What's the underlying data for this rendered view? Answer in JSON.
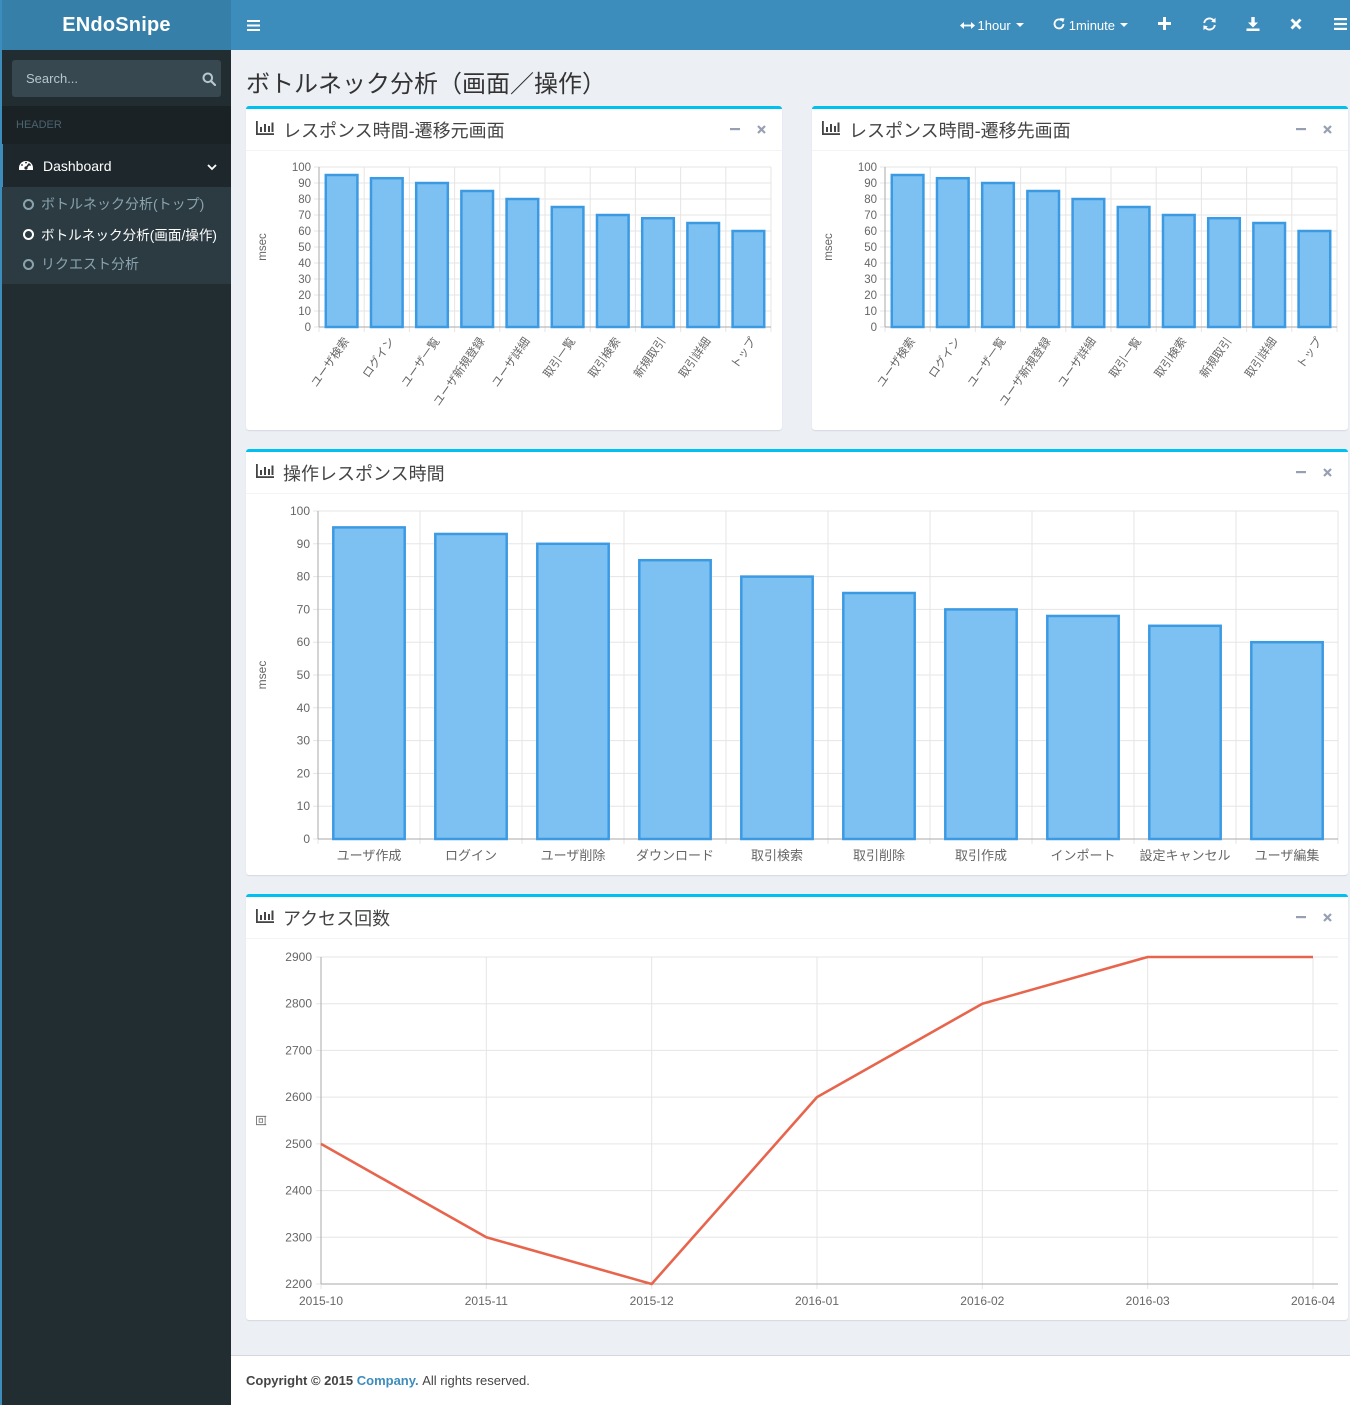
{
  "app": {
    "logo": "ENdoSnipe"
  },
  "sidebar": {
    "search_placeholder": "Search...",
    "header": "HEADER",
    "dashboard_label": "Dashboard",
    "items": [
      {
        "label": "ボトルネック分析(トップ)",
        "active": false
      },
      {
        "label": "ボトルネック分析(画面/操作)",
        "active": true
      },
      {
        "label": "リクエスト分析",
        "active": false
      }
    ]
  },
  "topbar": {
    "range_label": "1hour",
    "refresh_label": "1minute"
  },
  "page": {
    "title": "ボトルネック分析（画面／操作）"
  },
  "footer": {
    "prefix": "Copyright © 2015",
    "company": "Company.",
    "suffix": "All rights reserved."
  },
  "colors": {
    "bar_fill": "#7cc1f2",
    "bar_stroke": "#3c9ae3",
    "line": "#e8654d",
    "accent": "#00c0ef"
  },
  "chart_data": [
    {
      "id": "chart1",
      "type": "bar",
      "title": "レスポンス時間-遷移元画面",
      "ylabel": "msec",
      "ylim": [
        0,
        100
      ],
      "yticks": [
        0,
        10,
        20,
        30,
        40,
        50,
        60,
        70,
        80,
        90,
        100
      ],
      "categories": [
        "ユーザ検索",
        "ログイン",
        "ユーザ一覧",
        "ユーザ新規登録",
        "ユーザ詳細",
        "取引一覧",
        "取引検索",
        "新規取引",
        "取引詳細",
        "トップ"
      ],
      "values": [
        95,
        93,
        90,
        85,
        80,
        75,
        70,
        68,
        65,
        60
      ]
    },
    {
      "id": "chart2",
      "type": "bar",
      "title": "レスポンス時間-遷移先画面",
      "ylabel": "msec",
      "ylim": [
        0,
        100
      ],
      "yticks": [
        0,
        10,
        20,
        30,
        40,
        50,
        60,
        70,
        80,
        90,
        100
      ],
      "categories": [
        "ユーザ検索",
        "ログイン",
        "ユーザ一覧",
        "ユーザ新規登録",
        "ユーザ詳細",
        "取引一覧",
        "取引検索",
        "新規取引",
        "取引詳細",
        "トップ"
      ],
      "values": [
        95,
        93,
        90,
        85,
        80,
        75,
        70,
        68,
        65,
        60
      ]
    },
    {
      "id": "chart3",
      "type": "bar",
      "title": "操作レスポンス時間",
      "ylabel": "msec",
      "ylim": [
        0,
        100
      ],
      "yticks": [
        0,
        10,
        20,
        30,
        40,
        50,
        60,
        70,
        80,
        90,
        100
      ],
      "categories": [
        "ユーザ作成",
        "ログイン",
        "ユーザ削除",
        "ダウンロード",
        "取引検索",
        "取引削除",
        "取引作成",
        "インポート",
        "設定キャンセル",
        "ユーザ編集"
      ],
      "values": [
        95,
        93,
        90,
        85,
        80,
        75,
        70,
        68,
        65,
        60
      ]
    },
    {
      "id": "chart4",
      "type": "line",
      "title": "アクセス回数",
      "ylabel": "回",
      "ylim": [
        2200,
        2900
      ],
      "yticks": [
        2200,
        2300,
        2400,
        2500,
        2600,
        2700,
        2800,
        2900
      ],
      "x": [
        "2015-10",
        "2015-11",
        "2015-12",
        "2016-01",
        "2016-02",
        "2016-03",
        "2016-04"
      ],
      "values": [
        2500,
        2300,
        2200,
        2600,
        2800,
        2900,
        2900
      ]
    }
  ]
}
